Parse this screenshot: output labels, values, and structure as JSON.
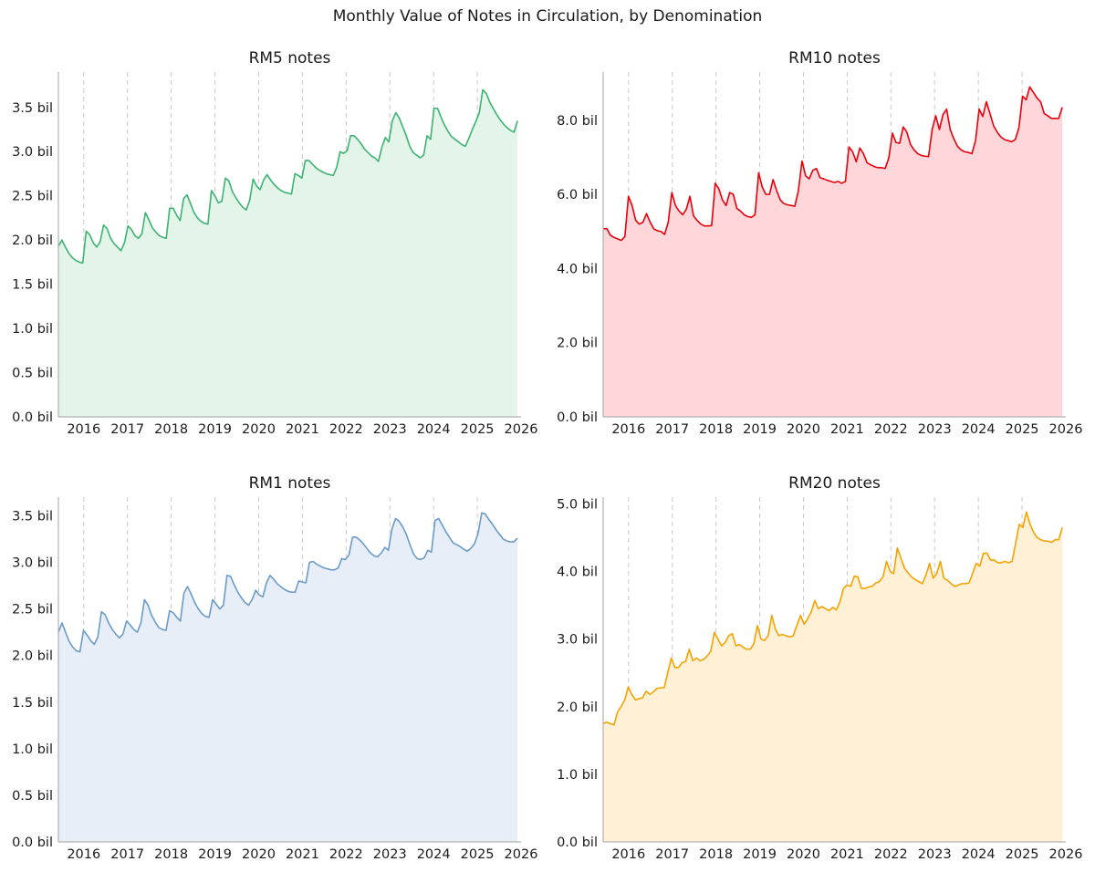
{
  "figure_title": "Monthly Value of Notes in Circulation, by Denomination",
  "chart_data": [
    {
      "type": "area",
      "title": "RM5 notes",
      "xlabel": "",
      "ylabel": "",
      "color": "#3cb371",
      "fill_color": "#e3f4e9",
      "x_start": 2015.42,
      "x_end": 2025.92,
      "xlim": [
        2015.42,
        2026.0
      ],
      "ylim": [
        0,
        3.9
      ],
      "x_ticks": [
        "2016",
        "2017",
        "2018",
        "2019",
        "2020",
        "2021",
        "2022",
        "2023",
        "2024",
        "2025",
        "2026"
      ],
      "y_ticks": [
        "0.0 bil",
        "0.5 bil",
        "1.0 bil",
        "1.5 bil",
        "2.0 bil",
        "2.5 bil",
        "3.0 bil",
        "3.5 bil"
      ],
      "y_tick_values": [
        0,
        0.5,
        1.0,
        1.5,
        2.0,
        2.5,
        3.0,
        3.5
      ],
      "grid": "vertical dashed at year boundaries",
      "values": [
        1.93,
        2.0,
        1.92,
        1.85,
        1.8,
        1.77,
        1.75,
        1.74,
        2.1,
        2.06,
        1.97,
        1.92,
        1.98,
        2.17,
        2.13,
        2.02,
        1.96,
        1.92,
        1.88,
        1.97,
        2.16,
        2.12,
        2.05,
        2.02,
        2.07,
        2.31,
        2.23,
        2.14,
        2.09,
        2.05,
        2.03,
        2.02,
        2.36,
        2.36,
        2.28,
        2.22,
        2.47,
        2.51,
        2.41,
        2.31,
        2.25,
        2.21,
        2.19,
        2.18,
        2.56,
        2.5,
        2.42,
        2.44,
        2.7,
        2.67,
        2.55,
        2.48,
        2.42,
        2.37,
        2.34,
        2.45,
        2.69,
        2.61,
        2.57,
        2.68,
        2.74,
        2.68,
        2.63,
        2.59,
        2.56,
        2.54,
        2.53,
        2.52,
        2.75,
        2.73,
        2.7,
        2.9,
        2.9,
        2.86,
        2.82,
        2.79,
        2.77,
        2.75,
        2.74,
        2.73,
        2.82,
        3.0,
        2.98,
        3.01,
        3.18,
        3.18,
        3.14,
        3.09,
        3.03,
        2.99,
        2.95,
        2.93,
        2.89,
        3.05,
        3.16,
        3.11,
        3.35,
        3.44,
        3.38,
        3.28,
        3.18,
        3.06,
        2.99,
        2.96,
        2.93,
        2.96,
        3.18,
        3.14,
        3.49,
        3.49,
        3.39,
        3.3,
        3.23,
        3.17,
        3.14,
        3.11,
        3.08,
        3.06,
        3.15,
        3.25,
        3.34,
        3.44,
        3.7,
        3.66,
        3.56,
        3.49,
        3.42,
        3.36,
        3.31,
        3.27,
        3.24,
        3.22,
        3.35
      ]
    },
    {
      "type": "area",
      "title": "RM10 notes",
      "xlabel": "",
      "ylabel": "",
      "color": "#e8000b",
      "fill_color": "#ffd6d9",
      "x_start": 2015.42,
      "x_end": 2025.92,
      "xlim": [
        2015.42,
        2026.0
      ],
      "ylim": [
        0,
        9.3
      ],
      "x_ticks": [
        "2016",
        "2017",
        "2018",
        "2019",
        "2020",
        "2021",
        "2022",
        "2023",
        "2024",
        "2025",
        "2026"
      ],
      "y_ticks": [
        "0.0 bil",
        "2.0 bil",
        "4.0 bil",
        "6.0 bil",
        "8.0 bil"
      ],
      "y_tick_values": [
        0,
        2.0,
        4.0,
        6.0,
        8.0
      ],
      "grid": "vertical dashed at year boundaries",
      "values": [
        5.07,
        5.08,
        4.9,
        4.84,
        4.8,
        4.76,
        4.86,
        5.95,
        5.7,
        5.3,
        5.2,
        5.25,
        5.48,
        5.25,
        5.07,
        5.02,
        5.0,
        4.92,
        5.25,
        6.05,
        5.7,
        5.55,
        5.45,
        5.6,
        5.95,
        5.42,
        5.3,
        5.2,
        5.15,
        5.15,
        5.16,
        6.3,
        6.15,
        5.85,
        5.7,
        6.05,
        6.0,
        5.62,
        5.55,
        5.45,
        5.4,
        5.38,
        5.45,
        6.58,
        6.2,
        6.0,
        6.0,
        6.4,
        6.1,
        5.85,
        5.75,
        5.72,
        5.7,
        5.68,
        6.1,
        6.9,
        6.5,
        6.42,
        6.65,
        6.7,
        6.45,
        6.42,
        6.38,
        6.35,
        6.32,
        6.35,
        6.3,
        6.35,
        7.28,
        7.15,
        6.88,
        7.25,
        7.1,
        6.85,
        6.8,
        6.75,
        6.72,
        6.72,
        6.7,
        6.98,
        7.65,
        7.4,
        7.38,
        7.82,
        7.68,
        7.35,
        7.2,
        7.1,
        7.05,
        7.03,
        7.02,
        7.75,
        8.12,
        7.75,
        8.15,
        8.3,
        7.75,
        7.5,
        7.3,
        7.2,
        7.15,
        7.13,
        7.1,
        7.45,
        8.3,
        8.1,
        8.5,
        8.18,
        7.85,
        7.68,
        7.55,
        7.48,
        7.45,
        7.42,
        7.48,
        7.8,
        8.65,
        8.55,
        8.9,
        8.75,
        8.6,
        8.5,
        8.18,
        8.12,
        8.05,
        8.05,
        8.05,
        8.35
      ]
    },
    {
      "type": "area",
      "title": "RM1 notes",
      "xlabel": "",
      "ylabel": "",
      "color": "#6a9bc9",
      "fill_color": "#e8eef7",
      "x_start": 2015.42,
      "x_end": 2025.92,
      "xlim": [
        2015.42,
        2026.0
      ],
      "ylim": [
        0,
        3.7
      ],
      "x_ticks": [
        "2016",
        "2017",
        "2018",
        "2019",
        "2020",
        "2021",
        "2022",
        "2023",
        "2024",
        "2025",
        "2026"
      ],
      "y_ticks": [
        "0.0 bil",
        "0.5 bil",
        "1.0 bil",
        "1.5 bil",
        "2.0 bil",
        "2.5 bil",
        "3.0 bil",
        "3.5 bil"
      ],
      "y_tick_values": [
        0,
        0.5,
        1.0,
        1.5,
        2.0,
        2.5,
        3.0,
        3.5
      ],
      "grid": "vertical dashed at year boundaries",
      "values": [
        2.25,
        2.35,
        2.25,
        2.15,
        2.09,
        2.05,
        2.04,
        2.27,
        2.22,
        2.16,
        2.12,
        2.2,
        2.47,
        2.44,
        2.35,
        2.28,
        2.23,
        2.19,
        2.23,
        2.37,
        2.33,
        2.28,
        2.25,
        2.35,
        2.6,
        2.54,
        2.43,
        2.36,
        2.3,
        2.28,
        2.27,
        2.48,
        2.46,
        2.41,
        2.37,
        2.67,
        2.74,
        2.66,
        2.57,
        2.5,
        2.45,
        2.42,
        2.41,
        2.6,
        2.55,
        2.5,
        2.54,
        2.86,
        2.85,
        2.76,
        2.68,
        2.62,
        2.57,
        2.54,
        2.6,
        2.7,
        2.65,
        2.63,
        2.78,
        2.86,
        2.82,
        2.77,
        2.74,
        2.71,
        2.69,
        2.68,
        2.68,
        2.8,
        2.79,
        2.78,
        3.0,
        3.01,
        2.98,
        2.96,
        2.94,
        2.93,
        2.92,
        2.92,
        2.94,
        3.04,
        3.03,
        3.08,
        3.27,
        3.27,
        3.24,
        3.2,
        3.15,
        3.1,
        3.07,
        3.06,
        3.1,
        3.16,
        3.13,
        3.36,
        3.47,
        3.44,
        3.38,
        3.3,
        3.19,
        3.09,
        3.04,
        3.03,
        3.05,
        3.13,
        3.11,
        3.45,
        3.47,
        3.4,
        3.33,
        3.27,
        3.21,
        3.19,
        3.17,
        3.14,
        3.12,
        3.15,
        3.2,
        3.31,
        3.53,
        3.52,
        3.46,
        3.41,
        3.35,
        3.3,
        3.25,
        3.23,
        3.22,
        3.22,
        3.26
      ]
    },
    {
      "type": "area",
      "title": "RM20 notes",
      "xlabel": "",
      "ylabel": "",
      "color": "#f5a300",
      "fill_color": "#fff0d6",
      "x_start": 2015.42,
      "x_end": 2025.92,
      "xlim": [
        2015.42,
        2026.0
      ],
      "ylim": [
        0,
        5.1
      ],
      "x_ticks": [
        "2016",
        "2017",
        "2018",
        "2019",
        "2020",
        "2021",
        "2022",
        "2023",
        "2024",
        "2025",
        "2026"
      ],
      "y_ticks": [
        "0.0 bil",
        "1.0 bil",
        "2.0 bil",
        "3.0 bil",
        "4.0 bil",
        "5.0 bil"
      ],
      "y_tick_values": [
        0,
        1.0,
        2.0,
        3.0,
        4.0,
        5.0
      ],
      "grid": "vertical dashed at year boundaries",
      "values": [
        1.75,
        1.77,
        1.75,
        1.73,
        1.92,
        2.0,
        2.1,
        2.29,
        2.18,
        2.1,
        2.12,
        2.13,
        2.23,
        2.18,
        2.22,
        2.27,
        2.28,
        2.28,
        2.5,
        2.72,
        2.58,
        2.58,
        2.65,
        2.67,
        2.85,
        2.68,
        2.72,
        2.68,
        2.7,
        2.75,
        2.82,
        3.1,
        3.0,
        2.9,
        2.95,
        3.05,
        3.08,
        2.9,
        2.92,
        2.88,
        2.85,
        2.85,
        2.93,
        3.2,
        3.0,
        2.98,
        3.05,
        3.35,
        3.15,
        3.05,
        3.07,
        3.05,
        3.03,
        3.05,
        3.2,
        3.35,
        3.22,
        3.3,
        3.4,
        3.57,
        3.45,
        3.48,
        3.45,
        3.42,
        3.47,
        3.43,
        3.55,
        3.75,
        3.8,
        3.78,
        3.93,
        3.92,
        3.75,
        3.75,
        3.77,
        3.78,
        3.83,
        3.85,
        3.92,
        4.15,
        4.0,
        3.97,
        4.35,
        4.2,
        4.05,
        3.98,
        3.92,
        3.88,
        3.85,
        3.82,
        3.95,
        4.12,
        3.9,
        3.97,
        4.15,
        3.9,
        3.87,
        3.82,
        3.78,
        3.8,
        3.82,
        3.82,
        3.83,
        3.97,
        4.12,
        4.08,
        4.27,
        4.27,
        4.17,
        4.17,
        4.13,
        4.13,
        4.15,
        4.13,
        4.15,
        4.42,
        4.7,
        4.65,
        4.88,
        4.7,
        4.58,
        4.5,
        4.47,
        4.45,
        4.45,
        4.43,
        4.47,
        4.47,
        4.65
      ]
    }
  ]
}
